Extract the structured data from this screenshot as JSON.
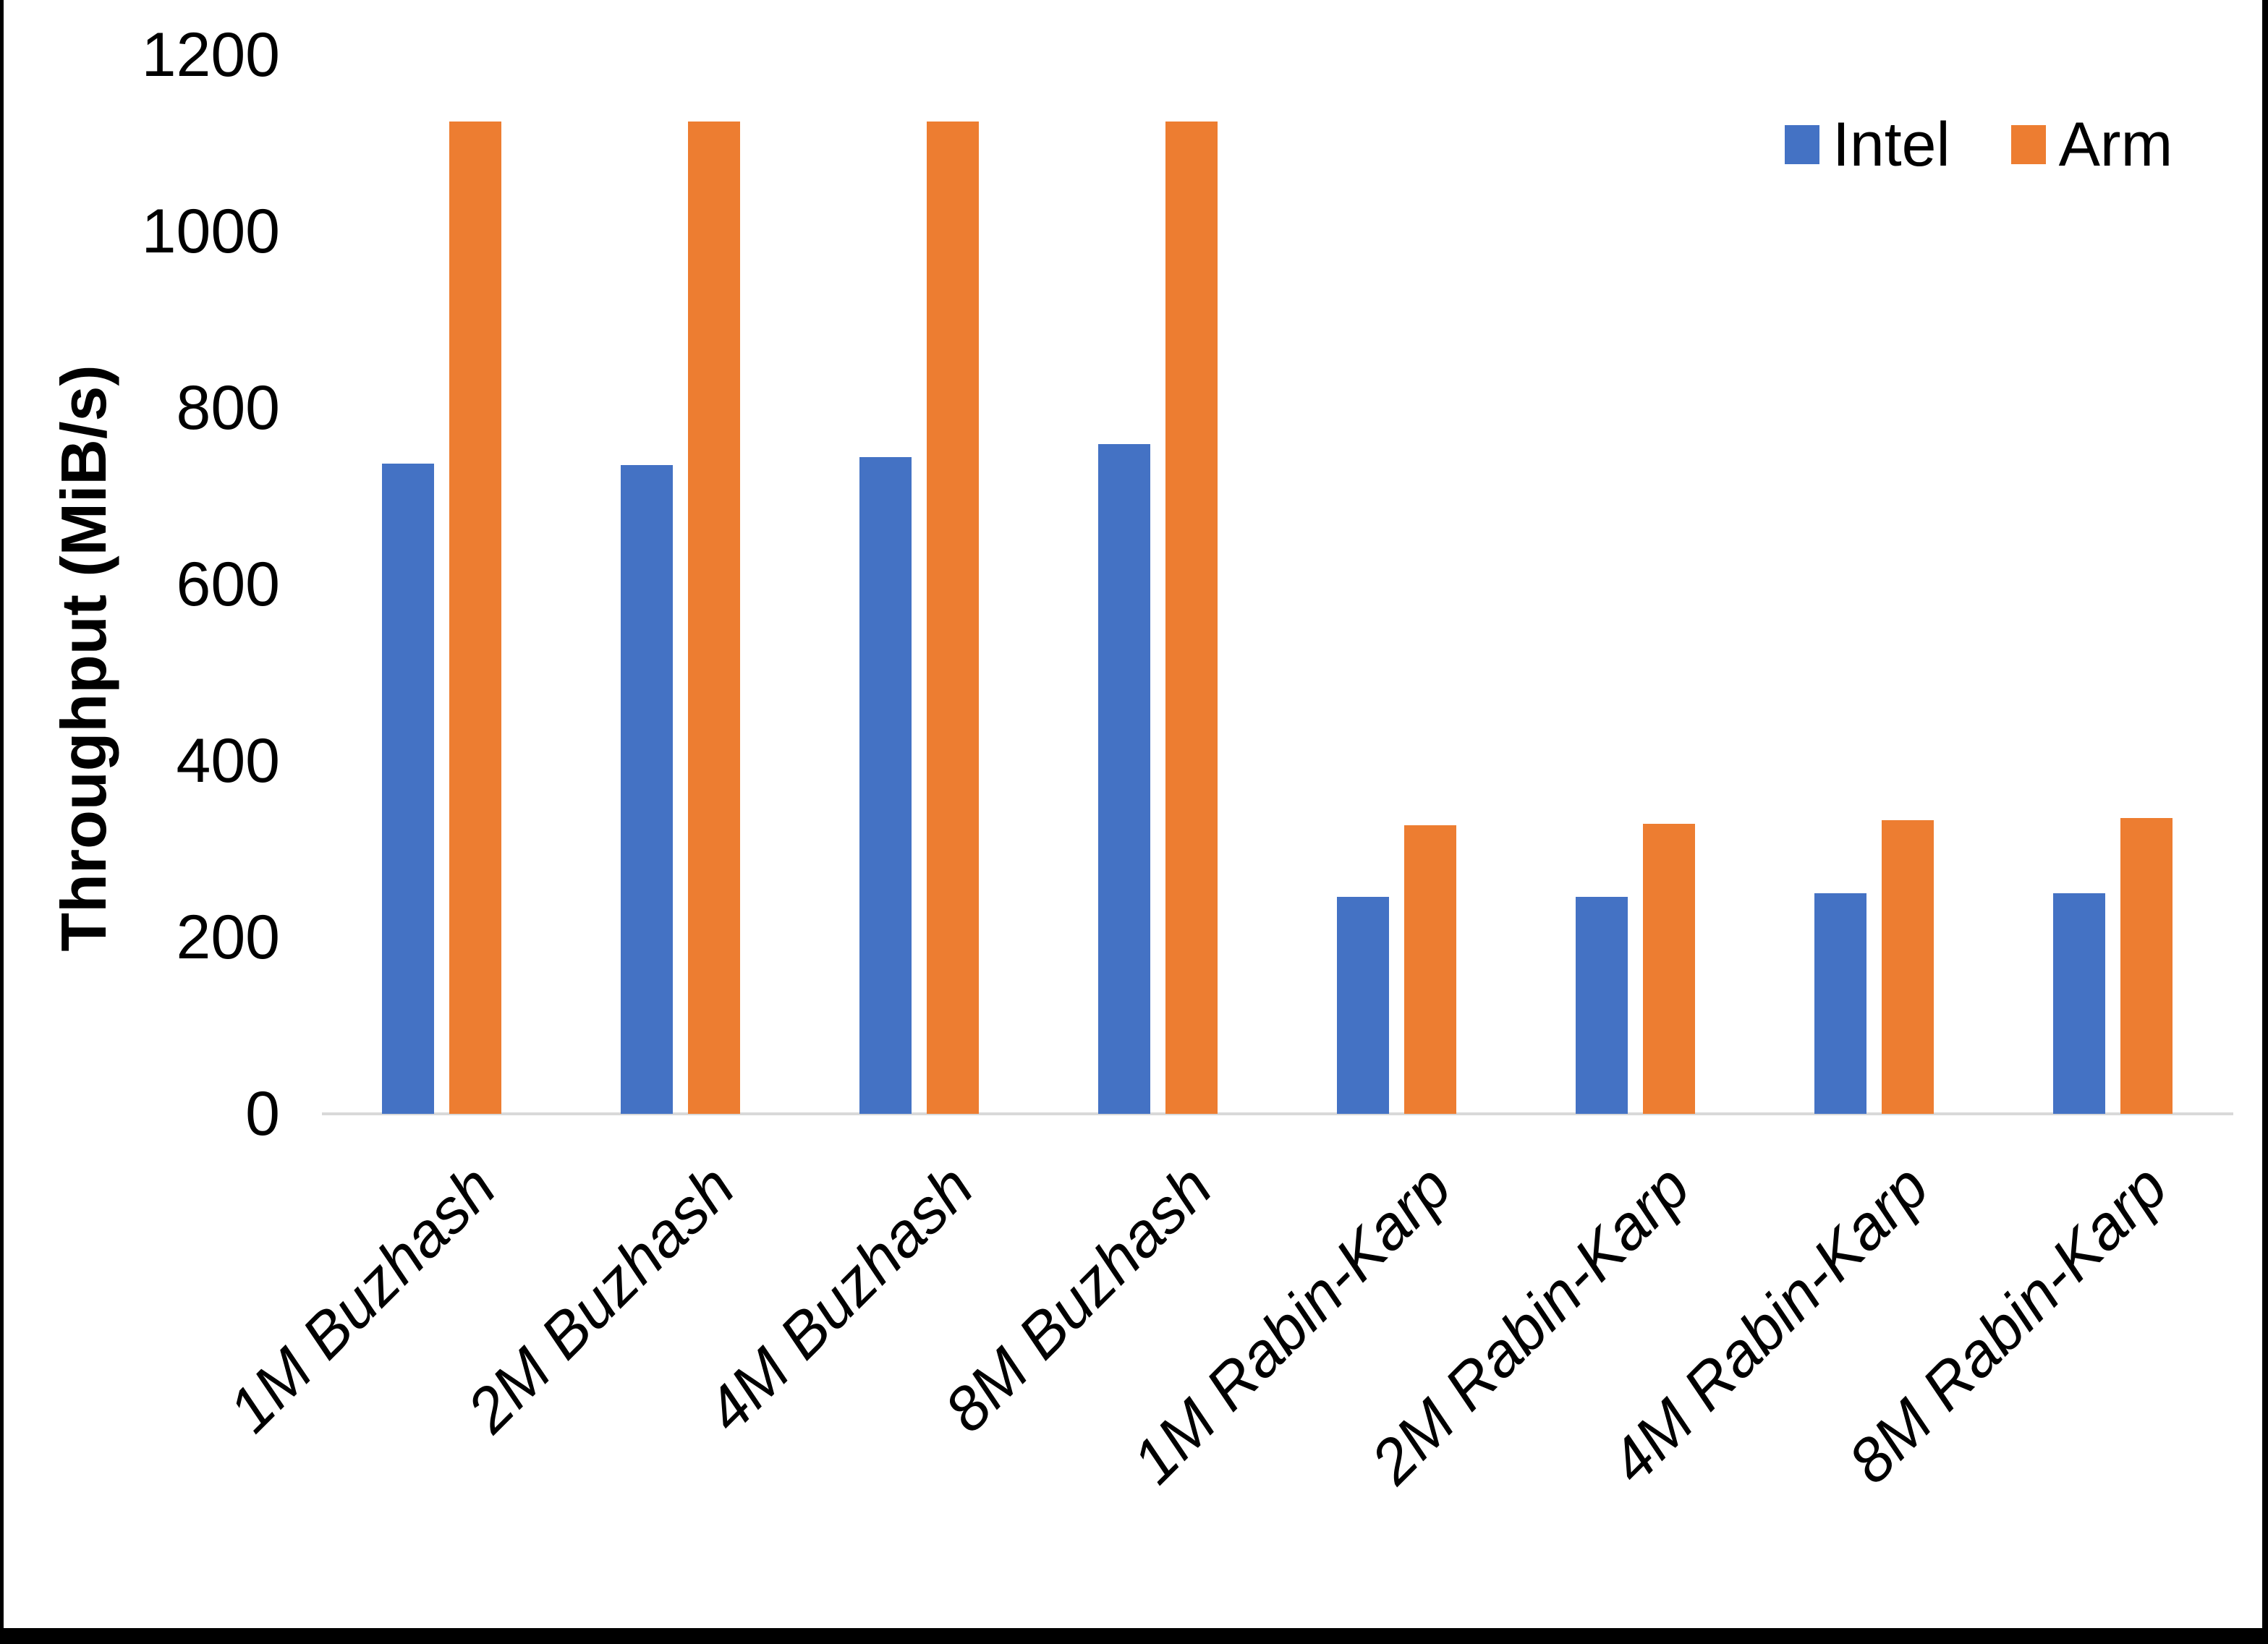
{
  "chart_data": {
    "type": "bar",
    "title": "",
    "xlabel": "",
    "ylabel": "Throughput (MiB/s)",
    "categories": [
      "1M Buzhash",
      "2M Buzhash",
      "4M Buzhash",
      "8M Buzhash",
      "1M Rabin-Karp",
      "2M Rabin-Karp",
      "4M Rabin-Karp",
      "8M Rabin-Karp"
    ],
    "series": [
      {
        "name": "Intel",
        "color": "#4472C4",
        "values": [
          737,
          735,
          744,
          759,
          246,
          246,
          250,
          250
        ]
      },
      {
        "name": "Arm",
        "color": "#ED7D31",
        "values": [
          1125,
          1125,
          1125,
          1125,
          327,
          329,
          333,
          335
        ]
      }
    ],
    "ylim": [
      0,
      1200
    ],
    "ytick_interval": 200,
    "ytick_labels": [
      "0",
      "200",
      "400",
      "600",
      "800",
      "1000",
      "1200"
    ],
    "grid": false,
    "legend_position": "top-right",
    "axis_line_color": "#d9d9d9",
    "text_color": "#000000",
    "background_color": "#ffffff",
    "frame_color": "#000000"
  }
}
